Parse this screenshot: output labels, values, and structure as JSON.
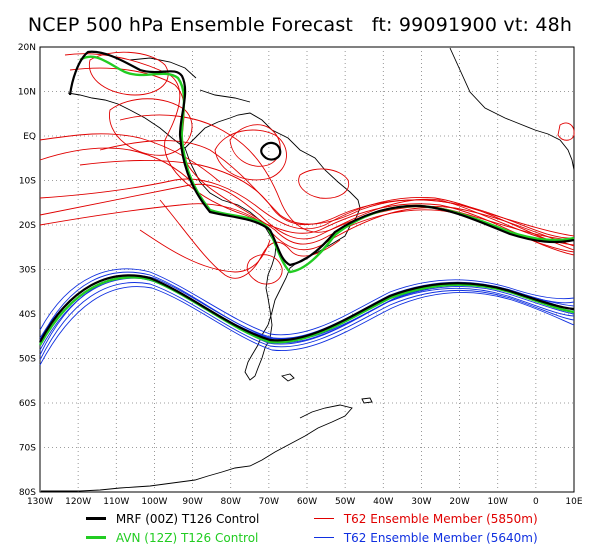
{
  "title": "NCEP 500 hPa Ensemble Forecast   ft: 99091900 vt: 48h",
  "lat_labels": [
    "20N",
    "10N",
    "EQ",
    "10S",
    "20S",
    "30S",
    "40S",
    "50S",
    "60S",
    "70S",
    "80S"
  ],
  "lon_labels": [
    "130W",
    "120W",
    "110W",
    "100W",
    "90W",
    "80W",
    "70W",
    "60W",
    "50W",
    "40W",
    "30W",
    "20W",
    "10W",
    "0",
    "10E"
  ],
  "legend": [
    {
      "label": "MRF (00Z) T126 Control",
      "color": "#000000",
      "width": 3
    },
    {
      "label": "AVN (12Z) T126 Control",
      "color": "#22cc22",
      "width": 3
    },
    {
      "label": "T62 Ensemble Member (5850m)",
      "color": "#e00000",
      "width": 1
    },
    {
      "label": "T62 Ensemble Member (5640m)",
      "color": "#1030e0",
      "width": 1
    }
  ],
  "colors": {
    "mrf": "#000000",
    "avn": "#22cc22",
    "ens5850": "#e00000",
    "ens5640": "#1030e0",
    "coast": "#000000",
    "grid": "#7f7f7f"
  }
}
